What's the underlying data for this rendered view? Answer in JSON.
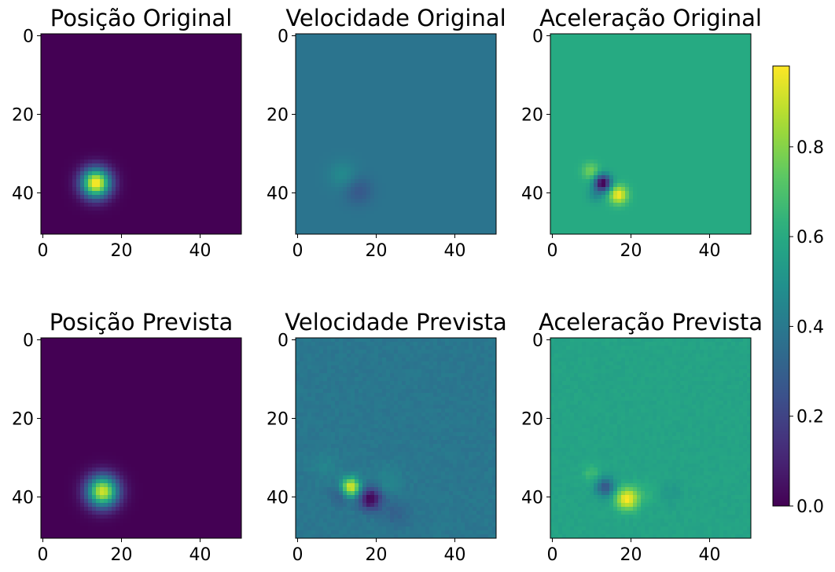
{
  "chart_data": {
    "type": "heatmap",
    "colormap": "viridis",
    "grid": false,
    "panels": [
      {
        "title": "Posição Original",
        "row": 0,
        "col": 0,
        "xlim": [
          0,
          50
        ],
        "ylim": [
          50,
          0
        ],
        "xticks": [
          "0",
          "20",
          "40"
        ],
        "yticks": [
          "0",
          "20",
          "40"
        ],
        "background": 0.0,
        "blobs": [
          {
            "x": 13.5,
            "y": 37.5,
            "sigma": 2.6,
            "amp": 1.0
          }
        ]
      },
      {
        "title": "Velocidade Original",
        "row": 0,
        "col": 1,
        "xlim": [
          0,
          50
        ],
        "ylim": [
          50,
          0
        ],
        "xticks": [
          "0",
          "20",
          "40"
        ],
        "yticks": [
          "0",
          "20",
          "40"
        ],
        "background": 0.38,
        "blobs": [
          {
            "x": 11.5,
            "y": 35.5,
            "sigma": 2.5,
            "amp": 0.09
          },
          {
            "x": 15.5,
            "y": 39.5,
            "sigma": 2.5,
            "amp": -0.11
          }
        ]
      },
      {
        "title": "Aceleração Original",
        "row": 0,
        "col": 2,
        "xlim": [
          0,
          50
        ],
        "ylim": [
          50,
          0
        ],
        "xticks": [
          "0",
          "20",
          "40"
        ],
        "yticks": [
          "0",
          "20",
          "40"
        ],
        "background": 0.6,
        "blobs": [
          {
            "x": 12.8,
            "y": 37.5,
            "sigma": 1.5,
            "amp": -0.62
          },
          {
            "x": 16.8,
            "y": 40.5,
            "sigma": 1.6,
            "amp": 0.38
          },
          {
            "x": 9.8,
            "y": 34.5,
            "sigma": 1.5,
            "amp": 0.18
          },
          {
            "x": 11.0,
            "y": 40.5,
            "sigma": 1.4,
            "amp": -0.12
          }
        ]
      },
      {
        "title": "Posição Prevista",
        "row": 1,
        "col": 0,
        "xlim": [
          0,
          50
        ],
        "ylim": [
          50,
          0
        ],
        "xticks": [
          "0",
          "20",
          "40"
        ],
        "yticks": [
          "0",
          "20",
          "40"
        ],
        "background": 0.0,
        "blobs": [
          {
            "x": 15.2,
            "y": 38.6,
            "sigma": 2.8,
            "amp": 0.92
          }
        ]
      },
      {
        "title": "Velocidade Prevista",
        "row": 1,
        "col": 1,
        "xlim": [
          0,
          50
        ],
        "ylim": [
          50,
          0
        ],
        "xticks": [
          "0",
          "20",
          "40"
        ],
        "yticks": [
          "0",
          "20",
          "40"
        ],
        "background": 0.39,
        "noise": 0.02,
        "blobs": [
          {
            "x": 13.5,
            "y": 37.5,
            "sigma": 1.7,
            "amp": 0.58
          },
          {
            "x": 18.5,
            "y": 40.5,
            "sigma": 2.0,
            "amp": -0.4
          },
          {
            "x": 11.0,
            "y": 39.5,
            "sigma": 1.8,
            "amp": -0.12
          },
          {
            "x": 23.0,
            "y": 36.0,
            "sigma": 2.5,
            "amp": 0.06
          },
          {
            "x": 25.0,
            "y": 44.0,
            "sigma": 2.5,
            "amp": -0.08
          },
          {
            "x": 7.0,
            "y": 32.0,
            "sigma": 2.5,
            "amp": 0.05
          }
        ]
      },
      {
        "title": "Aceleração Prevista",
        "row": 1,
        "col": 2,
        "xlim": [
          0,
          50
        ],
        "ylim": [
          50,
          0
        ],
        "xticks": [
          "0",
          "20",
          "40"
        ],
        "yticks": [
          "0",
          "20",
          "40"
        ],
        "background": 0.57,
        "noise": 0.015,
        "blobs": [
          {
            "x": 13.5,
            "y": 37.5,
            "sigma": 1.7,
            "amp": -0.3
          },
          {
            "x": 19.0,
            "y": 40.5,
            "sigma": 2.0,
            "amp": 0.42
          },
          {
            "x": 10.0,
            "y": 34.0,
            "sigma": 1.6,
            "amp": 0.1
          },
          {
            "x": 24.0,
            "y": 39.0,
            "sigma": 2.2,
            "amp": 0.05
          },
          {
            "x": 30.0,
            "y": 39.0,
            "sigma": 2.0,
            "amp": -0.05
          }
        ]
      }
    ],
    "colorbar": {
      "range": [
        0.0,
        0.98
      ],
      "ticks": [
        "0.0",
        "0.2",
        "0.4",
        "0.6",
        "0.8"
      ],
      "tick_values": [
        0.0,
        0.2,
        0.4,
        0.6,
        0.8
      ]
    }
  }
}
